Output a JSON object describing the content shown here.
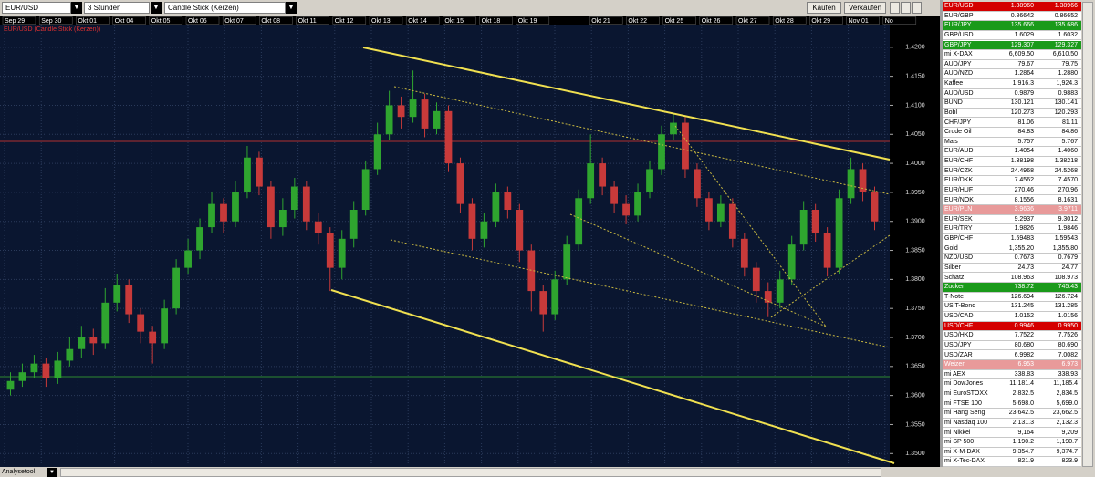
{
  "toolbar": {
    "symbol": "EUR/USD",
    "interval": "3 Stunden",
    "chart_type": "Candle Stick (Kerzen)",
    "buttons": [
      "Kaufen",
      "Verkaufen"
    ]
  },
  "chart": {
    "label": "EUR/USD (Candle Stick (Kerzen))",
    "dates": [
      "Sep 29",
      "Sep 30",
      "Okt 01",
      "Okt 04",
      "Okt 05",
      "Okt 06",
      "Okt 07",
      "Okt 08",
      "Okt 11",
      "Okt 12",
      "Okt 13",
      "Okt 14",
      "Okt 15",
      "Okt 18",
      "Okt 19",
      null,
      "Okt 21",
      "Okt 22",
      "Okt 25",
      "Okt 26",
      "Okt 27",
      "Okt 28",
      "Okt 29",
      "Nov 01",
      "No"
    ],
    "ylim": [
      1.348,
      1.4239
    ],
    "yticks": [
      {
        "value": 1.42,
        "label": "1.4200"
      },
      {
        "value": 1.415,
        "label": "1.4150"
      },
      {
        "value": 1.41,
        "label": "1.4100"
      },
      {
        "value": 1.405,
        "label": "1.4050"
      },
      {
        "value": 1.4,
        "label": "1.4000"
      },
      {
        "value": 1.395,
        "label": "1.3950"
      },
      {
        "value": 1.39,
        "label": "1.3900"
      },
      {
        "value": 1.385,
        "label": "1.3850"
      },
      {
        "value": 1.38,
        "label": "1.3800"
      },
      {
        "value": 1.375,
        "label": "1.3750"
      },
      {
        "value": 1.37,
        "label": "1.3700"
      },
      {
        "value": 1.365,
        "label": "1.3650"
      },
      {
        "value": 1.36,
        "label": "1.3600"
      },
      {
        "value": 1.355,
        "label": "1.3550"
      },
      {
        "value": 1.35,
        "label": "1.3500"
      }
    ],
    "up_color": "#2fa52f",
    "down_color": "#c83a3a",
    "candles": [
      [
        1.361,
        1.364,
        1.36,
        1.3625
      ],
      [
        1.3625,
        1.3655,
        1.3615,
        1.364
      ],
      [
        1.364,
        1.367,
        1.363,
        1.3655
      ],
      [
        1.3655,
        1.3665,
        1.3615,
        1.363
      ],
      [
        1.363,
        1.3675,
        1.362,
        1.366
      ],
      [
        1.366,
        1.37,
        1.365,
        1.368
      ],
      [
        1.368,
        1.372,
        1.3665,
        1.37
      ],
      [
        1.37,
        1.3715,
        1.367,
        1.369
      ],
      [
        1.369,
        1.3785,
        1.368,
        1.376
      ],
      [
        1.376,
        1.381,
        1.3745,
        1.379
      ],
      [
        1.379,
        1.38,
        1.3725,
        1.374
      ],
      [
        1.374,
        1.375,
        1.369,
        1.371
      ],
      [
        1.371,
        1.372,
        1.3655,
        1.369
      ],
      [
        1.369,
        1.3765,
        1.368,
        1.375
      ],
      [
        1.375,
        1.3835,
        1.374,
        1.382
      ],
      [
        1.382,
        1.387,
        1.381,
        1.385
      ],
      [
        1.385,
        1.3905,
        1.3835,
        1.389
      ],
      [
        1.389,
        1.395,
        1.388,
        1.393
      ],
      [
        1.393,
        1.394,
        1.388,
        1.39
      ],
      [
        1.39,
        1.397,
        1.389,
        1.395
      ],
      [
        1.395,
        1.403,
        1.394,
        1.401
      ],
      [
        1.401,
        1.402,
        1.3945,
        1.396
      ],
      [
        1.396,
        1.397,
        1.387,
        1.389
      ],
      [
        1.389,
        1.394,
        1.3875,
        1.392
      ],
      [
        1.392,
        1.3975,
        1.3905,
        1.396
      ],
      [
        1.396,
        1.397,
        1.3885,
        1.39
      ],
      [
        1.39,
        1.3915,
        1.386,
        1.388
      ],
      [
        1.388,
        1.389,
        1.378,
        1.382
      ],
      [
        1.382,
        1.3885,
        1.38,
        1.387
      ],
      [
        1.387,
        1.3935,
        1.3855,
        1.392
      ],
      [
        1.392,
        1.4005,
        1.391,
        1.399
      ],
      [
        1.399,
        1.407,
        1.398,
        1.405
      ],
      [
        1.405,
        1.4125,
        1.404,
        1.41
      ],
      [
        1.41,
        1.4115,
        1.406,
        1.408
      ],
      [
        1.408,
        1.416,
        1.407,
        1.411
      ],
      [
        1.411,
        1.412,
        1.4045,
        1.406
      ],
      [
        1.406,
        1.4105,
        1.405,
        1.409
      ],
      [
        1.409,
        1.41,
        1.3985,
        1.4
      ],
      [
        1.4,
        1.401,
        1.3915,
        1.393
      ],
      [
        1.393,
        1.394,
        1.385,
        1.387
      ],
      [
        1.387,
        1.3915,
        1.3855,
        1.39
      ],
      [
        1.39,
        1.3965,
        1.389,
        1.395
      ],
      [
        1.395,
        1.396,
        1.3905,
        1.392
      ],
      [
        1.392,
        1.393,
        1.383,
        1.385
      ],
      [
        1.385,
        1.386,
        1.3745,
        1.378
      ],
      [
        1.378,
        1.379,
        1.371,
        1.374
      ],
      [
        1.374,
        1.3815,
        1.373,
        1.38
      ],
      [
        1.38,
        1.3875,
        1.379,
        1.386
      ],
      [
        1.386,
        1.3955,
        1.385,
        1.394
      ],
      [
        1.394,
        1.405,
        1.393,
        1.4
      ],
      [
        1.4,
        1.401,
        1.3945,
        1.396
      ],
      [
        1.396,
        1.397,
        1.3915,
        1.393
      ],
      [
        1.393,
        1.3945,
        1.3895,
        1.391
      ],
      [
        1.391,
        1.3965,
        1.39,
        1.395
      ],
      [
        1.395,
        1.4005,
        1.394,
        1.399
      ],
      [
        1.399,
        1.4065,
        1.398,
        1.405
      ],
      [
        1.405,
        1.4085,
        1.404,
        1.407
      ],
      [
        1.407,
        1.408,
        1.3975,
        1.399
      ],
      [
        1.399,
        1.4,
        1.3925,
        1.394
      ],
      [
        1.394,
        1.395,
        1.3885,
        1.39
      ],
      [
        1.39,
        1.3945,
        1.389,
        1.393
      ],
      [
        1.393,
        1.394,
        1.3855,
        1.387
      ],
      [
        1.387,
        1.388,
        1.3805,
        1.382
      ],
      [
        1.382,
        1.383,
        1.376,
        1.378
      ],
      [
        1.378,
        1.3795,
        1.3735,
        1.376
      ],
      [
        1.376,
        1.3815,
        1.375,
        1.38
      ],
      [
        1.38,
        1.3875,
        1.379,
        1.386
      ],
      [
        1.386,
        1.3935,
        1.385,
        1.392
      ],
      [
        1.392,
        1.393,
        1.3865,
        1.388
      ],
      [
        1.388,
        1.389,
        1.3805,
        1.382
      ],
      [
        1.382,
        1.3955,
        1.381,
        1.394
      ],
      [
        1.394,
        1.401,
        1.393,
        1.399
      ],
      [
        1.399,
        1.4,
        1.3935,
        1.395
      ],
      [
        1.395,
        1.396,
        1.3885,
        1.39
      ]
    ]
  },
  "watchlist": {
    "rows": [
      {
        "name": "EUR/USD",
        "bid": "1.38960",
        "ask": "1.38966",
        "color": "#d40000"
      },
      {
        "name": "EUR/GBP",
        "bid": "0.86642",
        "ask": "0.86652"
      },
      {
        "name": "EUR/JPY",
        "bid": "135.666",
        "ask": "135.686",
        "color": "#1a9a1a"
      },
      {
        "name": "GBP/USD",
        "bid": "1.6029",
        "ask": "1.6032"
      },
      {
        "name": "GBP/JPY",
        "bid": "129.307",
        "ask": "129.327",
        "color": "#1a9a1a"
      },
      {
        "name": "mi X-DAX",
        "bid": "6,609.50",
        "ask": "6,610.50"
      },
      {
        "name": "AUD/JPY",
        "bid": "79.67",
        "ask": "79.75"
      },
      {
        "name": "AUD/NZD",
        "bid": "1.2864",
        "ask": "1.2880"
      },
      {
        "name": "Kaffee",
        "bid": "1,916.3",
        "ask": "1,924.3"
      },
      {
        "name": "AUD/USD",
        "bid": "0.9879",
        "ask": "0.9883"
      },
      {
        "name": "BUND",
        "bid": "130.121",
        "ask": "130.141"
      },
      {
        "name": "Bobl",
        "bid": "120.273",
        "ask": "120.293"
      },
      {
        "name": "CHF/JPY",
        "bid": "81.06",
        "ask": "81.11"
      },
      {
        "name": "Crude Oil",
        "bid": "84.83",
        "ask": "84.86"
      },
      {
        "name": "Mais",
        "bid": "5.757",
        "ask": "5.767"
      },
      {
        "name": "EUR/AUD",
        "bid": "1.4054",
        "ask": "1.4060"
      },
      {
        "name": "EUR/CHF",
        "bid": "1.38198",
        "ask": "1.38218"
      },
      {
        "name": "EUR/CZK",
        "bid": "24.4968",
        "ask": "24.5268"
      },
      {
        "name": "EUR/DKK",
        "bid": "7.4562",
        "ask": "7.4570"
      },
      {
        "name": "EUR/HUF",
        "bid": "270.46",
        "ask": "270.96"
      },
      {
        "name": "EUR/NOK",
        "bid": "8.1556",
        "ask": "8.1631"
      },
      {
        "name": "EUR/PLN",
        "bid": "3.9636",
        "ask": "3.9711",
        "color": "#e89a9a"
      },
      {
        "name": "EUR/SEK",
        "bid": "9.2937",
        "ask": "9.3012"
      },
      {
        "name": "EUR/TRY",
        "bid": "1.9826",
        "ask": "1.9846"
      },
      {
        "name": "GBP/CHF",
        "bid": "1.59483",
        "ask": "1.59543"
      },
      {
        "name": "Gold",
        "bid": "1,355.20",
        "ask": "1,355.80"
      },
      {
        "name": "NZD/USD",
        "bid": "0.7673",
        "ask": "0.7679"
      },
      {
        "name": "Silber",
        "bid": "24.73",
        "ask": "24.77"
      },
      {
        "name": "Schatz",
        "bid": "108.963",
        "ask": "108.973"
      },
      {
        "name": "Zucker",
        "bid": "738.72",
        "ask": "745.43",
        "color": "#1a9a1a"
      },
      {
        "name": "T-Note",
        "bid": "126.694",
        "ask": "126.724"
      },
      {
        "name": "US T-Bond",
        "bid": "131.245",
        "ask": "131.285"
      },
      {
        "name": "USD/CAD",
        "bid": "1.0152",
        "ask": "1.0156"
      },
      {
        "name": "USD/CHF",
        "bid": "0.9946",
        "ask": "0.9950",
        "color": "#d40000"
      },
      {
        "name": "USD/HKD",
        "bid": "7.7522",
        "ask": "7.7526"
      },
      {
        "name": "USD/JPY",
        "bid": "80.680",
        "ask": "80.690"
      },
      {
        "name": "USD/ZAR",
        "bid": "6.9982",
        "ask": "7.0082"
      },
      {
        "name": "Weizen",
        "bid": "6.953",
        "ask": "6.973",
        "color": "#e89a9a"
      },
      {
        "name": "mi AEX",
        "bid": "338.83",
        "ask": "338.93"
      },
      {
        "name": "mi DowJones",
        "bid": "11,181.4",
        "ask": "11,185.4"
      },
      {
        "name": "mi EuroSTOXX",
        "bid": "2,832.5",
        "ask": "2,834.5"
      },
      {
        "name": "mi FTSE 100",
        "bid": "5,698.0",
        "ask": "5,699.0"
      },
      {
        "name": "mi Hang Seng",
        "bid": "23,642.5",
        "ask": "23,662.5"
      },
      {
        "name": "mi Nasdaq 100",
        "bid": "2,131.3",
        "ask": "2,132.3"
      },
      {
        "name": "mi Nikkei",
        "bid": "9,164",
        "ask": "9,209"
      },
      {
        "name": "mi SP 500",
        "bid": "1,190.2",
        "ask": "1,190.7"
      },
      {
        "name": "mi X-M-DAX",
        "bid": "9,354.7",
        "ask": "9,374.7"
      },
      {
        "name": "mi X-Tec-DAX",
        "bid": "821.9",
        "ask": "823.9"
      }
    ]
  },
  "footer": {
    "tool": "Analysetool"
  }
}
